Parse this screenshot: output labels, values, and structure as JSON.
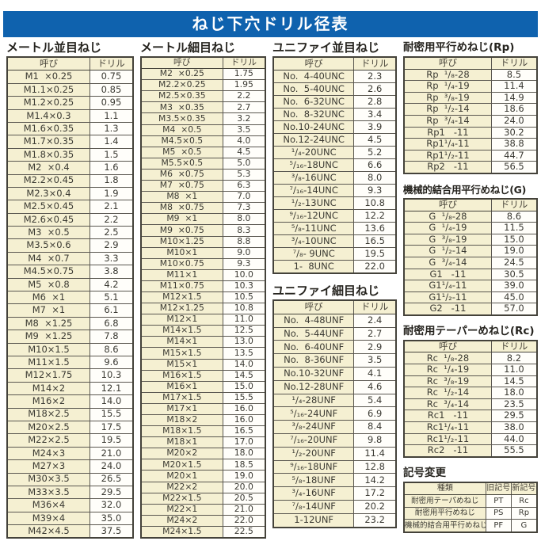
{
  "title": "ねじ下穴ドリル径表",
  "cols": {
    "name": "呼び",
    "drill": "ドリル"
  },
  "sections": {
    "metric_coarse": {
      "title": "メートル並目ねじ",
      "rows": [
        [
          "M1  ×0.25",
          "0.75"
        ],
        [
          "M1.1×0.25",
          "0.85"
        ],
        [
          "M1.2×0.25",
          "0.95"
        ],
        [
          "M1.4×0.3",
          "1.1"
        ],
        [
          "M1.6×0.35",
          "1.3"
        ],
        [
          "M1.7×0.35",
          "1.4"
        ],
        [
          "M1.8×0.35",
          "1.5"
        ],
        [
          "M2  ×0.4",
          "1.6"
        ],
        [
          "M2.2×0.45",
          "1.8"
        ],
        [
          "M2.3×0.4",
          "1.9"
        ],
        [
          "M2.5×0.45",
          "2.1"
        ],
        [
          "M2.6×0.45",
          "2.2"
        ],
        [
          "M3  ×0.5",
          "2.5"
        ],
        [
          "M3.5×0.6",
          "2.9"
        ],
        [
          "M4  ×0.7",
          "3.3"
        ],
        [
          "M4.5×0.75",
          "3.8"
        ],
        [
          "M5  ×0.8",
          "4.2"
        ],
        [
          "M6  ×1",
          "5.1"
        ],
        [
          "M7  ×1",
          "6.1"
        ],
        [
          "M8  ×1.25",
          "6.8"
        ],
        [
          "M9  ×1.25",
          "7.8"
        ],
        [
          "M10×1.5",
          "8.6"
        ],
        [
          "M11×1.5",
          "9.6"
        ],
        [
          "M12×1.75",
          "10.3"
        ],
        [
          "M14×2",
          "12.1"
        ],
        [
          "M16×2",
          "14.0"
        ],
        [
          "M18×2.5",
          "15.5"
        ],
        [
          "M20×2.5",
          "17.5"
        ],
        [
          "M22×2.5",
          "19.5"
        ],
        [
          "M24×3",
          "21.0"
        ],
        [
          "M27×3",
          "24.0"
        ],
        [
          "M30×3.5",
          "26.5"
        ],
        [
          "M33×3.5",
          "29.5"
        ],
        [
          "M36×4",
          "32.0"
        ],
        [
          "M39×4",
          "35.0"
        ],
        [
          "M42×4.5",
          "37.5"
        ]
      ]
    },
    "metric_fine": {
      "title": "メートル細目ねじ",
      "rows": [
        [
          "M2  ×0.25",
          "1.75"
        ],
        [
          "M2.2×0.25",
          "1.95"
        ],
        [
          "M2.5×0.35",
          "2.2"
        ],
        [
          "M3  ×0.35",
          "2.7"
        ],
        [
          "M3.5×0.35",
          "3.2"
        ],
        [
          "M4  ×0.5",
          "3.5"
        ],
        [
          "M4.5×0.5",
          "4.0"
        ],
        [
          "M5  ×0.5",
          "4.5"
        ],
        [
          "M5.5×0.5",
          "5.0"
        ],
        [
          "M6  ×0.75",
          "5.3"
        ],
        [
          "M7  ×0.75",
          "6.3"
        ],
        [
          "M8  ×1",
          "7.0"
        ],
        [
          "M8  ×0.75",
          "7.3"
        ],
        [
          "M9  ×1",
          "8.0"
        ],
        [
          "M9  ×0.75",
          "8.3"
        ],
        [
          "M10×1.25",
          "8.8"
        ],
        [
          "M10×1",
          "9.0"
        ],
        [
          "M10×0.75",
          "9.3"
        ],
        [
          "M11×1",
          "10.0"
        ],
        [
          "M11×0.75",
          "10.3"
        ],
        [
          "M12×1.5",
          "10.5"
        ],
        [
          "M12×1.25",
          "10.8"
        ],
        [
          "M12×1",
          "11.0"
        ],
        [
          "M14×1.5",
          "12.5"
        ],
        [
          "M14×1",
          "13.0"
        ],
        [
          "M15×1.5",
          "13.5"
        ],
        [
          "M15×1",
          "14.0"
        ],
        [
          "M16×1.5",
          "14.5"
        ],
        [
          "M16×1",
          "15.0"
        ],
        [
          "M17×1.5",
          "15.5"
        ],
        [
          "M17×1",
          "16.0"
        ],
        [
          "M18×2",
          "16.0"
        ],
        [
          "M18×1.5",
          "16.5"
        ],
        [
          "M18×1",
          "17.0"
        ],
        [
          "M20×2",
          "18.0"
        ],
        [
          "M20×1.5",
          "18.5"
        ],
        [
          "M20×1",
          "19.0"
        ],
        [
          "M22×2",
          "20.0"
        ],
        [
          "M22×1.5",
          "20.5"
        ],
        [
          "M22×1",
          "21.0"
        ],
        [
          "M24×2",
          "22.0"
        ],
        [
          "M24×1.5",
          "22.5"
        ]
      ]
    },
    "unified_coarse": {
      "title": "ユニファイ並目ねじ",
      "rows": [
        [
          "No.  4-40UNC",
          "2.3"
        ],
        [
          "No.  5-40UNC",
          "2.6"
        ],
        [
          "No.  6-32UNC",
          "2.8"
        ],
        [
          "No.  8-32UNC",
          "3.4"
        ],
        [
          "No.10-24UNC",
          "3.9"
        ],
        [
          "No.12-24UNC",
          "4.5"
        ],
        [
          "¹/₄-20UNC",
          "5.2"
        ],
        [
          "⁵/₁₆-18UNC",
          "6.6"
        ],
        [
          "³/₈-16UNC",
          "8.0"
        ],
        [
          "⁷/₁₆-14UNC",
          "9.3"
        ],
        [
          "¹/₂-13UNC",
          "10.8"
        ],
        [
          "⁹/₁₆-12UNC",
          "12.2"
        ],
        [
          "⁵/₈-11UNC",
          "13.6"
        ],
        [
          "³/₄-10UNC",
          "16.5"
        ],
        [
          "⁷/₈- 9UNC",
          "19.5"
        ],
        [
          "1-  8UNC",
          "22.0"
        ]
      ]
    },
    "unified_fine": {
      "title": "ユニファイ細目ねじ",
      "rows": [
        [
          "No.  4-48UNF",
          "2.4"
        ],
        [
          "No.  5-44UNF",
          "2.7"
        ],
        [
          "No.  6-40UNF",
          "2.9"
        ],
        [
          "No.  8-36UNF",
          "3.5"
        ],
        [
          "No.10-32UNF",
          "4.1"
        ],
        [
          "No.12-28UNF",
          "4.6"
        ],
        [
          "¹/₄-28UNF",
          "5.4"
        ],
        [
          "⁵/₁₆-24UNF",
          "6.9"
        ],
        [
          "³/₈-24UNF",
          "8.4"
        ],
        [
          "⁷/₁₆-20UNF",
          "9.8"
        ],
        [
          "¹/₂-20UNF",
          "11.4"
        ],
        [
          "⁹/₁₆-18UNF",
          "12.8"
        ],
        [
          "⁵/₈-18UNF",
          "14.2"
        ],
        [
          "³/₄-16UNF",
          "17.2"
        ],
        [
          "⁷/₈-14UNF",
          "20.2"
        ],
        [
          "1-12UNF",
          "23.2"
        ]
      ]
    },
    "rp": {
      "title": "耐密用平行めねじ(Rp)",
      "rows": [
        [
          "Rp  ¹/₈-28",
          "8.5"
        ],
        [
          "Rp  ¹/₄-19",
          "11.4"
        ],
        [
          "Rp  ³/₈-19",
          "14.9"
        ],
        [
          "Rp  ¹/₂-14",
          "18.6"
        ],
        [
          "Rp  ³/₄-14",
          "24.0"
        ],
        [
          "Rp1   -11",
          "30.2"
        ],
        [
          "Rp1¹/₄-11",
          "38.8"
        ],
        [
          "Rp1¹/₂-11",
          "44.7"
        ],
        [
          "Rp2   -11",
          "56.5"
        ]
      ]
    },
    "g": {
      "title": "機械的結合用平行めねじ(G)",
      "rows": [
        [
          "G  ¹/₈-28",
          "8.6"
        ],
        [
          "G  ¹/₄-19",
          "11.5"
        ],
        [
          "G  ³/₈-19",
          "15.0"
        ],
        [
          "G  ¹/₂-14",
          "19.0"
        ],
        [
          "G  ³/₄-14",
          "24.5"
        ],
        [
          "G1   -11",
          "30.5"
        ],
        [
          "G1¹/₄-11",
          "39.0"
        ],
        [
          "G1¹/₂-11",
          "45.0"
        ],
        [
          "G2   -11",
          "57.0"
        ]
      ]
    },
    "rc": {
      "title": "耐密用テーパーめねじ(Rc)",
      "rows": [
        [
          "Rc  ¹/₈-28",
          "8.2"
        ],
        [
          "Rc  ¹/₄-19",
          "11.0"
        ],
        [
          "Rc  ³/₈-19",
          "14.5"
        ],
        [
          "Rc  ¹/₂-14",
          "18.0"
        ],
        [
          "Rc  ³/₄-14",
          "23.5"
        ],
        [
          "Rc1   -11",
          "29.5"
        ],
        [
          "Rc1¹/₄-11",
          "38.0"
        ],
        [
          "Rc1¹/₂-11",
          "44.0"
        ],
        [
          "Rc2   -11",
          "55.5"
        ]
      ]
    },
    "symbol_change": {
      "title": "記号変更",
      "headers": [
        "種類",
        "旧記号",
        "新記号"
      ],
      "rows": [
        [
          "耐密用テーパめねじ",
          "PT",
          "Rc"
        ],
        [
          "耐密用平行めねじ",
          "PS",
          "Rp"
        ],
        [
          "機械的結合用平行めねじ",
          "PF",
          "G"
        ]
      ]
    }
  },
  "colors": {
    "header_blue": "#0f62ae",
    "cell_cream": "#f5f0d2",
    "border_gray": "#5a5750"
  }
}
